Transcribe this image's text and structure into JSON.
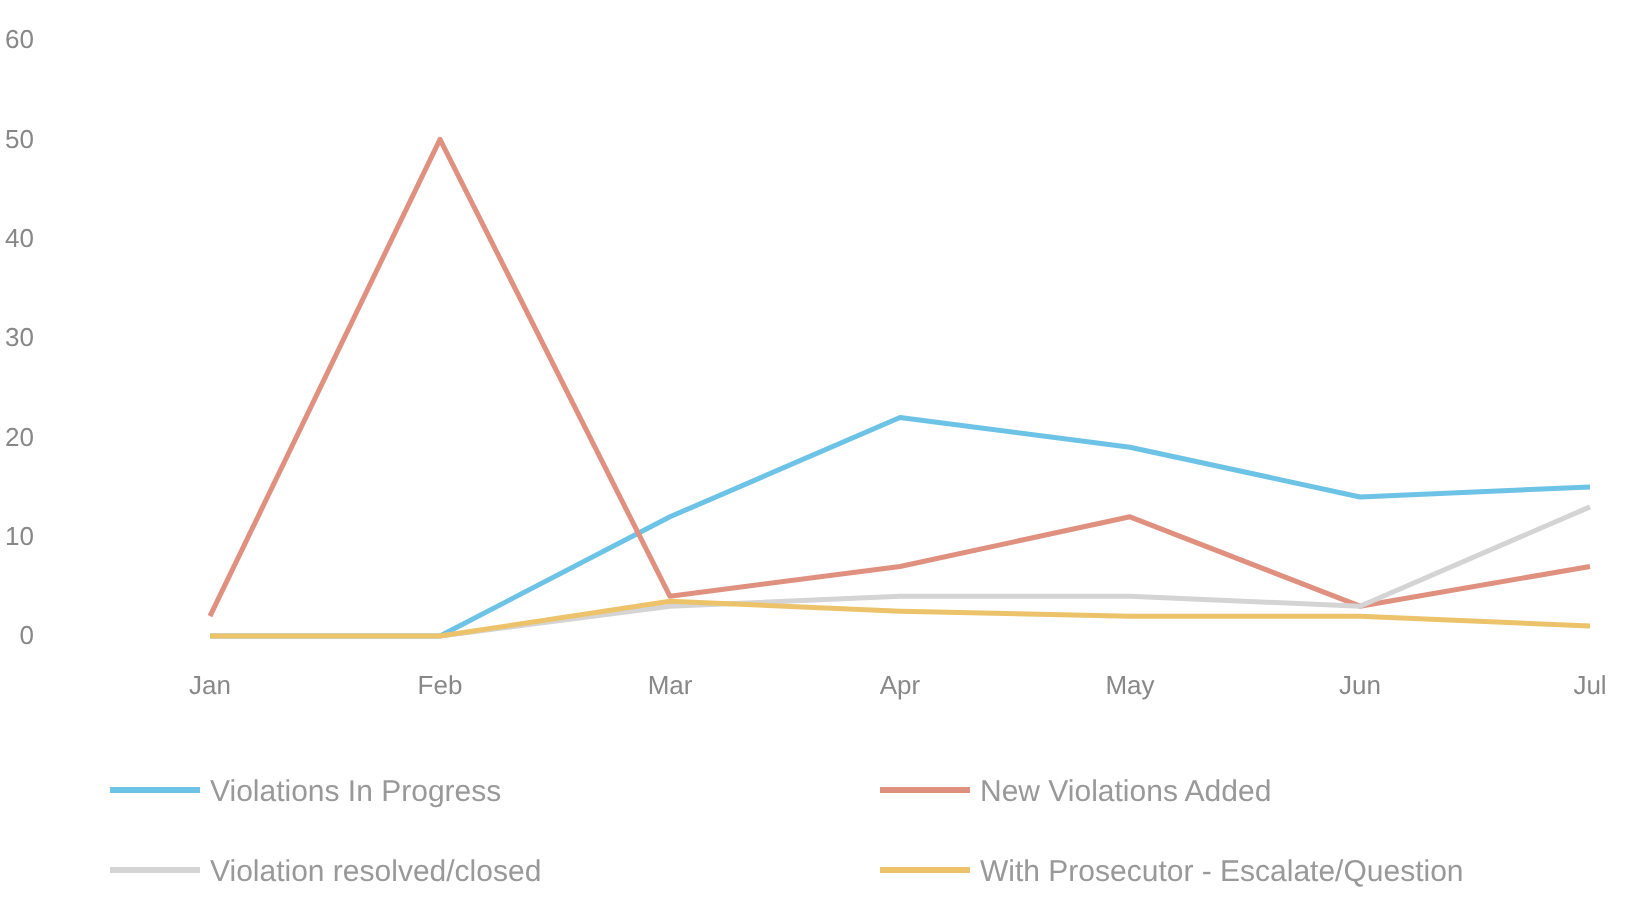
{
  "chart_data": {
    "type": "line",
    "categories": [
      "Jan",
      "Feb",
      "Mar",
      "Apr",
      "May",
      "Jun",
      "Jul"
    ],
    "series": [
      {
        "name": "Violations In Progress",
        "color": "#6cc3e6",
        "values": [
          0,
          0,
          12,
          22,
          19,
          14,
          15
        ]
      },
      {
        "name": "New Violations Added",
        "color": "#e0907e",
        "values": [
          2,
          50,
          4,
          7,
          12,
          3,
          7
        ]
      },
      {
        "name": "Violation resolved/closed",
        "color": "#d4d4d4",
        "values": [
          0,
          0,
          3,
          4,
          4,
          3,
          13
        ]
      },
      {
        "name": "With Prosecutor - Escalate/Question",
        "color": "#ecc36a",
        "values": [
          0,
          0,
          3.5,
          2.5,
          2,
          2,
          1
        ]
      }
    ],
    "ylim": [
      0,
      60
    ],
    "yticks": [
      0,
      10,
      20,
      30,
      40,
      50,
      60
    ],
    "grid": false,
    "legend": "bottom",
    "marker": "none",
    "line_style": "solid"
  }
}
